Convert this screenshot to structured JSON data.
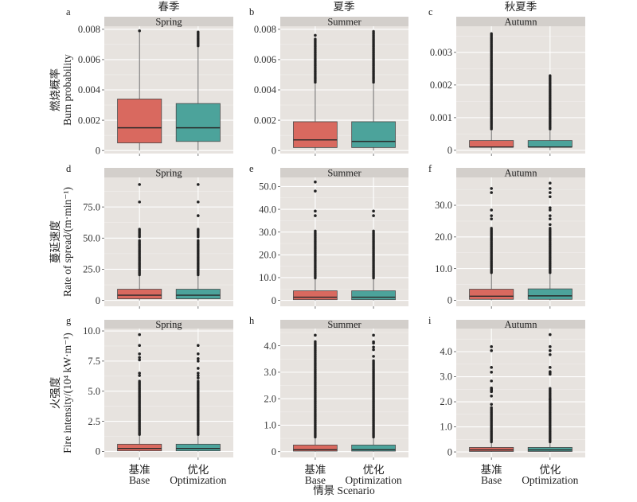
{
  "figure": {
    "column_titles": [
      "春季",
      "夏季",
      "秋夏季"
    ],
    "row_labels": [
      {
        "zh": "燃烧概率",
        "en": "Burn probability"
      },
      {
        "zh": "蔓延速度",
        "en": "Rate of spread/(m·min⁻¹)"
      },
      {
        "zh": "火强度",
        "en": "Fire intensity/(10⁴ kW·m⁻¹)"
      }
    ],
    "scenario_labels": [
      {
        "zh": "基准",
        "en": "Base"
      },
      {
        "zh": "优化",
        "en": "Optimization"
      }
    ],
    "x_axis_title": "情景 Scenario",
    "colors": {
      "Base": "#d9695f",
      "Optimization": "#4ca39b",
      "panel_bg": "#e7e3df",
      "strip_bg": "#d3cfcb",
      "outlier": "#222222"
    }
  },
  "chart_data": [
    {
      "type": "box",
      "panel_letter": "a",
      "strip": "Spring",
      "season_zh": "春季",
      "ylabel": "燃烧概率 Burn probability",
      "xlabel": "情景 Scenario",
      "categories": [
        "Base",
        "Optimization"
      ],
      "yticks": [
        0,
        0.002,
        0.004,
        0.006,
        0.008
      ],
      "ytick_labels": [
        "0",
        "0.002",
        "0.004",
        "0.006",
        "0.008"
      ],
      "ylim": [
        -0.0002,
        0.0082
      ],
      "grid": true,
      "series": [
        {
          "name": "Base",
          "whisker_low": 0,
          "q1": 0.0005,
          "median": 0.0015,
          "q3": 0.0034,
          "whisker_high": 0.0078,
          "outlier_dense_ranges": [],
          "outliers": [
            0.0079
          ]
        },
        {
          "name": "Optimization",
          "whisker_low": 0,
          "q1": 0.0006,
          "median": 0.0015,
          "q3": 0.0031,
          "whisker_high": 0.0068,
          "outlier_dense_ranges": [
            [
              0.0069,
              0.0079
            ]
          ],
          "outliers": []
        }
      ]
    },
    {
      "type": "box",
      "panel_letter": "b",
      "strip": "Summer",
      "season_zh": "夏季",
      "ylabel": "燃烧概率 Burn probability",
      "xlabel": "情景 Scenario",
      "categories": [
        "Base",
        "Optimization"
      ],
      "yticks": [
        0,
        0.002,
        0.004,
        0.006,
        0.008
      ],
      "ytick_labels": [
        "0",
        "0.002",
        "0.004",
        "0.006",
        "0.008"
      ],
      "ylim": [
        -0.0002,
        0.0082
      ],
      "grid": true,
      "series": [
        {
          "name": "Base",
          "whisker_low": 0,
          "q1": 0.0002,
          "median": 0.0007,
          "q3": 0.0019,
          "whisker_high": 0.0044,
          "outlier_dense_ranges": [
            [
              0.0045,
              0.0074
            ]
          ],
          "outliers": [
            0.0076
          ]
        },
        {
          "name": "Optimization",
          "whisker_low": 0,
          "q1": 0.0002,
          "median": 0.0006,
          "q3": 0.0019,
          "whisker_high": 0.0044,
          "outlier_dense_ranges": [
            [
              0.0045,
              0.0079
            ]
          ],
          "outliers": []
        }
      ]
    },
    {
      "type": "box",
      "panel_letter": "c",
      "strip": "Autumn",
      "season_zh": "秋夏季",
      "ylabel": "燃烧概率 Burn probability",
      "xlabel": "情景 Scenario",
      "categories": [
        "Base",
        "Optimization"
      ],
      "yticks": [
        0,
        0.001,
        0.002,
        0.003
      ],
      "ytick_labels": [
        "0",
        "0.001",
        "0.002",
        "0.003"
      ],
      "ylim": [
        -0.0001,
        0.0038
      ],
      "grid": true,
      "series": [
        {
          "name": "Base",
          "whisker_low": 0,
          "q1": 0.0001,
          "median": 0.0001,
          "q3": 0.0003,
          "whisker_high": 0.0006,
          "outlier_dense_ranges": [
            [
              0.00065,
              0.0036
            ]
          ],
          "outliers": []
        },
        {
          "name": "Optimization",
          "whisker_low": 0,
          "q1": 0.0001,
          "median": 0.0001,
          "q3": 0.0003,
          "whisker_high": 0.0006,
          "outlier_dense_ranges": [
            [
              0.00065,
              0.0023
            ]
          ],
          "outliers": []
        }
      ]
    },
    {
      "type": "box",
      "panel_letter": "d",
      "strip": "Spring",
      "season_zh": "春季",
      "ylabel": "蔓延速度 Rate of spread/(m·min⁻¹)",
      "xlabel": "情景 Scenario",
      "categories": [
        "Base",
        "Optimization"
      ],
      "yticks": [
        0,
        25,
        50,
        75
      ],
      "ytick_labels": [
        "0",
        "25.0",
        "50.0",
        "75.0"
      ],
      "ylim": [
        -4.7,
        98.7
      ],
      "grid": true,
      "series": [
        {
          "name": "Base",
          "whisker_low": 0,
          "q1": 1.3,
          "median": 4.2,
          "q3": 9.0,
          "whisker_high": 20,
          "outlier_dense_ranges": [
            [
              20.5,
              49
            ],
            [
              51,
              58
            ]
          ],
          "outliers": [
            79,
            93
          ]
        },
        {
          "name": "Optimization",
          "whisker_low": 0,
          "q1": 1.3,
          "median": 4.2,
          "q3": 9.0,
          "whisker_high": 20,
          "outlier_dense_ranges": [
            [
              20.5,
              49
            ],
            [
              51,
              58
            ]
          ],
          "outliers": [
            68,
            79,
            93
          ]
        }
      ]
    },
    {
      "type": "box",
      "panel_letter": "e",
      "strip": "Summer",
      "season_zh": "夏季",
      "ylabel": "蔓延速度 Rate of spread/(m·min⁻¹)",
      "xlabel": "情景 Scenario",
      "categories": [
        "Base",
        "Optimization"
      ],
      "yticks": [
        0,
        10,
        20,
        30,
        40,
        50
      ],
      "ytick_labels": [
        "0",
        "10.0",
        "20.0",
        "30.0",
        "40.0",
        "50.0"
      ],
      "ylim": [
        -2.6,
        54
      ],
      "grid": true,
      "series": [
        {
          "name": "Base",
          "whisker_low": 0,
          "q1": 0.3,
          "median": 1.4,
          "q3": 4.2,
          "whisker_high": 9.6,
          "outlier_dense_ranges": [
            [
              9.8,
              31
            ]
          ],
          "outliers": [
            37.2,
            39.2,
            48,
            52
          ]
        },
        {
          "name": "Optimization",
          "whisker_low": 0,
          "q1": 0.3,
          "median": 1.4,
          "q3": 4.2,
          "whisker_high": 9.6,
          "outlier_dense_ranges": [
            [
              9.8,
              31
            ]
          ],
          "outliers": [
            37.2,
            39.2
          ]
        }
      ]
    },
    {
      "type": "box",
      "panel_letter": "f",
      "strip": "Autumn",
      "season_zh": "秋夏季",
      "ylabel": "蔓延速度 Rate of spread/(m·min⁻¹)",
      "xlabel": "情景 Scenario",
      "categories": [
        "Base",
        "Optimization"
      ],
      "yticks": [
        0,
        10,
        20,
        30
      ],
      "ytick_labels": [
        "0",
        "10.0",
        "20.0",
        "30.0"
      ],
      "ylim": [
        -1.9,
        38.8
      ],
      "grid": true,
      "series": [
        {
          "name": "Base",
          "whisker_low": 0,
          "q1": 0.3,
          "median": 1.3,
          "q3": 3.5,
          "whisker_high": 8.5,
          "outlier_dense_ranges": [
            [
              8.7,
              23
            ]
          ],
          "outliers": [
            25.7,
            26.7,
            28.5,
            34,
            35.3
          ]
        },
        {
          "name": "Optimization",
          "whisker_low": 0,
          "q1": 0.3,
          "median": 1.4,
          "q3": 3.6,
          "whisker_high": 8.5,
          "outlier_dense_ranges": [
            [
              8.7,
              23
            ]
          ],
          "outliers": [
            23.9,
            25.7,
            26.7,
            28.5,
            29.2,
            32.7,
            34,
            35.3,
            37
          ]
        }
      ]
    },
    {
      "type": "box",
      "panel_letter": "g",
      "strip": "Spring",
      "season_zh": "春季",
      "ylabel": "火强度 Fire intensity/(10⁴ kW·m⁻¹)",
      "xlabel": "情景 Scenario",
      "categories": [
        "Base",
        "Optimization"
      ],
      "yticks": [
        0,
        2.5,
        5,
        7.5,
        10
      ],
      "ytick_labels": [
        "0",
        "2.5",
        "5.0",
        "7.5",
        "10.0"
      ],
      "ylim": [
        -0.5,
        10.2
      ],
      "grid": true,
      "series": [
        {
          "name": "Base",
          "whisker_low": 0,
          "q1": 0.05,
          "median": 0.25,
          "q3": 0.6,
          "whisker_high": 1.35,
          "outlier_dense_ranges": [
            [
              1.4,
              5.9
            ]
          ],
          "outliers": [
            6.3,
            6.5,
            7.6,
            7.8,
            8.1,
            8.8,
            9.7
          ]
        },
        {
          "name": "Optimization",
          "whisker_low": 0,
          "q1": 0.05,
          "median": 0.25,
          "q3": 0.6,
          "whisker_high": 1.35,
          "outlier_dense_ranges": [
            [
              1.4,
              5.9
            ]
          ],
          "outliers": [
            6.1,
            6.3,
            6.5,
            6.9,
            7.5,
            7.7,
            8.1,
            8.8
          ]
        }
      ]
    },
    {
      "type": "box",
      "panel_letter": "h",
      "strip": "Summer",
      "season_zh": "夏季",
      "ylabel": "火强度 Fire intensity/(10⁴ kW·m⁻¹)",
      "xlabel": "情景 Scenario",
      "categories": [
        "Base",
        "Optimization"
      ],
      "yticks": [
        0,
        1,
        2,
        3,
        4
      ],
      "ytick_labels": [
        "0",
        "1.0",
        "2.0",
        "3.0",
        "4.0"
      ],
      "ylim": [
        -0.22,
        4.65
      ],
      "grid": true,
      "series": [
        {
          "name": "Base",
          "whisker_low": 0,
          "q1": 0.02,
          "median": 0.07,
          "q3": 0.25,
          "whisker_high": 0.53,
          "outlier_dense_ranges": [
            [
              0.55,
              4.2
            ]
          ],
          "outliers": [
            4.4
          ]
        },
        {
          "name": "Optimization",
          "whisker_low": 0,
          "q1": 0.02,
          "median": 0.07,
          "q3": 0.25,
          "whisker_high": 0.53,
          "outlier_dense_ranges": [
            [
              0.55,
              3.45
            ]
          ],
          "outliers": [
            3.6,
            3.85,
            3.95,
            4.1,
            4.15,
            4.4
          ]
        }
      ]
    },
    {
      "type": "box",
      "panel_letter": "i",
      "strip": "Autumn",
      "season_zh": "秋夏季",
      "ylabel": "火强度 Fire intensity/(10⁴ kW·m⁻¹)",
      "xlabel": "情景 Scenario",
      "categories": [
        "Base",
        "Optimization"
      ],
      "yticks": [
        0,
        1,
        2,
        3,
        4
      ],
      "ytick_labels": [
        "0",
        "1.0",
        "2.0",
        "3.0",
        "4.0"
      ],
      "ylim": [
        -0.22,
        4.92
      ],
      "grid": true,
      "series": [
        {
          "name": "Base",
          "whisker_low": 0,
          "q1": 0.02,
          "median": 0.08,
          "q3": 0.18,
          "whisker_high": 0.38,
          "outlier_dense_ranges": [
            [
              0.4,
              1.8
            ]
          ],
          "outliers": [
            1.9,
            2.23,
            2.4,
            2.45,
            2.5,
            2.55,
            2.83,
            3.18,
            3.37,
            4.04,
            4.2
          ]
        },
        {
          "name": "Optimization",
          "whisker_low": 0,
          "q1": 0.02,
          "median": 0.08,
          "q3": 0.18,
          "whisker_high": 0.38,
          "outlier_dense_ranges": [
            [
              0.4,
              2.55
            ]
          ],
          "outliers": [
            2.1,
            3.1,
            3.15,
            3.2,
            3.37,
            3.88,
            4.04,
            4.2,
            4.68
          ]
        }
      ]
    }
  ]
}
